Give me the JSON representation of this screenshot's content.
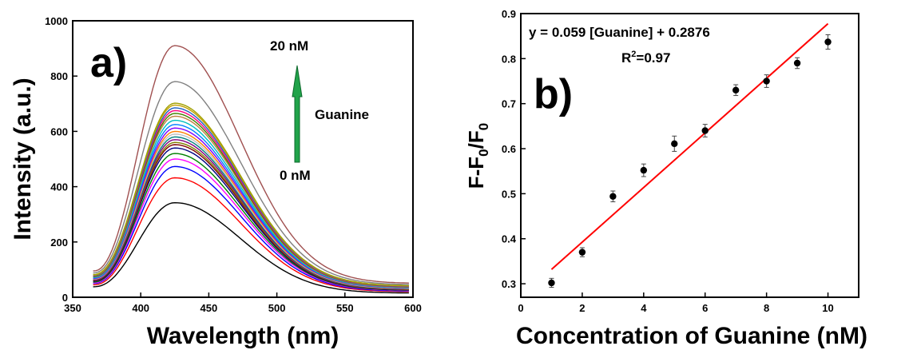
{
  "chart_data": [
    {
      "type": "line",
      "panel_label": "a)",
      "xlabel": "Wavelength (nm)",
      "ylabel": "Intensity (a.u.)",
      "xlim": [
        350,
        600
      ],
      "ylim": [
        0,
        1000
      ],
      "x_ticks": [
        350,
        400,
        450,
        500,
        550,
        600
      ],
      "y_ticks": [
        0,
        200,
        400,
        600,
        800,
        1000
      ],
      "x_range": [
        365,
        597
      ],
      "peak_wavelength": 425,
      "series": [
        {
          "peak": 342,
          "start": 38,
          "end": 15,
          "color": "#000000"
        },
        {
          "peak": 432,
          "start": 45,
          "end": 20,
          "color": "#ff0000"
        },
        {
          "peak": 473,
          "start": 50,
          "end": 22,
          "color": "#0000ff"
        },
        {
          "peak": 500,
          "start": 52,
          "end": 24,
          "color": "#ff00ff"
        },
        {
          "peak": 520,
          "start": 55,
          "end": 25,
          "color": "#008000"
        },
        {
          "peak": 540,
          "start": 58,
          "end": 26,
          "color": "#000080"
        },
        {
          "peak": 552,
          "start": 60,
          "end": 27,
          "color": "#800000"
        },
        {
          "peak": 560,
          "start": 62,
          "end": 28,
          "color": "#808000"
        },
        {
          "peak": 570,
          "start": 63,
          "end": 29,
          "color": "#800080"
        },
        {
          "peak": 580,
          "start": 65,
          "end": 30,
          "color": "#008080"
        },
        {
          "peak": 590,
          "start": 66,
          "end": 31,
          "color": "#c0c0c0"
        },
        {
          "peak": 600,
          "start": 67,
          "end": 32,
          "color": "#ff8000"
        },
        {
          "peak": 612,
          "start": 68,
          "end": 33,
          "color": "#8000ff"
        },
        {
          "peak": 625,
          "start": 70,
          "end": 34,
          "color": "#0080ff"
        },
        {
          "peak": 640,
          "start": 72,
          "end": 35,
          "color": "#00c0c0"
        },
        {
          "peak": 655,
          "start": 74,
          "end": 36,
          "color": "#c08040"
        },
        {
          "peak": 665,
          "start": 75,
          "end": 37,
          "color": "#408000"
        },
        {
          "peak": 675,
          "start": 77,
          "end": 38,
          "color": "#ff0080"
        },
        {
          "peak": 685,
          "start": 78,
          "end": 39,
          "color": "#2060c0"
        },
        {
          "peak": 695,
          "start": 80,
          "end": 40,
          "color": "#c0a000"
        },
        {
          "peak": 702,
          "start": 82,
          "end": 41,
          "color": "#a0a000"
        },
        {
          "peak": 780,
          "start": 88,
          "end": 45,
          "color": "#808080"
        },
        {
          "peak": 910,
          "start": 95,
          "end": 50,
          "color": "#a05050"
        }
      ],
      "annotations": {
        "top_label": "20 nM",
        "bottom_label": "0 nM",
        "arrow_label": "Guanine",
        "arrow_color": "#21a34a"
      }
    },
    {
      "type": "scatter",
      "panel_label": "b)",
      "xlabel": "Concentration of Guanine (nM)",
      "ylabel_main": "F-F",
      "ylabel_sub0": "0",
      "ylabel_slash": "/F",
      "ylabel_sub1": "0",
      "xlim": [
        0,
        11
      ],
      "ylim": [
        0.27,
        0.9
      ],
      "x_ticks": [
        0,
        2,
        4,
        6,
        8,
        10
      ],
      "y_ticks": [
        0.3,
        0.4,
        0.5,
        0.6,
        0.7,
        0.8,
        0.9
      ],
      "x": [
        1,
        2,
        3,
        4,
        5,
        6,
        7,
        8,
        9,
        10
      ],
      "y": [
        0.302,
        0.37,
        0.494,
        0.552,
        0.611,
        0.64,
        0.73,
        0.75,
        0.79,
        0.837
      ],
      "err": [
        0.01,
        0.01,
        0.012,
        0.014,
        0.017,
        0.014,
        0.012,
        0.014,
        0.012,
        0.016
      ],
      "fit": {
        "slope": 0.059,
        "intercept": 0.2876,
        "x_range": [
          1,
          10
        ],
        "color": "#ff0000"
      },
      "equation": "y = 0.059 [Guanine] + 0.2876",
      "r2_prefix": "R",
      "r2_sup": "2",
      "r2_value": "=0.97"
    }
  ]
}
